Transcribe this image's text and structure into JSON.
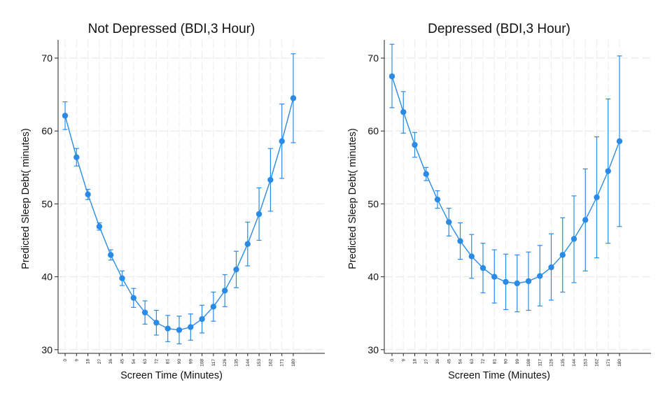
{
  "chart_data": [
    {
      "type": "line",
      "title": "Not Depressed (BDI,3 Hour)",
      "xlabel": "Screen Time (Minutes)",
      "ylabel": "Predicted Sleep Debt( minutes)",
      "x": [
        0,
        9,
        18,
        27,
        36,
        45,
        54,
        63,
        72,
        81,
        90,
        99,
        108,
        117,
        126,
        135,
        144,
        153,
        162,
        171,
        180
      ],
      "y": [
        62.1,
        56.4,
        51.3,
        46.9,
        43.0,
        39.8,
        37.1,
        35.1,
        33.7,
        32.9,
        32.7,
        33.1,
        34.2,
        35.9,
        38.1,
        41.0,
        44.5,
        48.6,
        53.3,
        58.6,
        64.5
      ],
      "ci_lower": [
        60.2,
        55.2,
        50.6,
        46.4,
        42.3,
        38.8,
        35.8,
        33.5,
        32.0,
        31.1,
        30.8,
        31.3,
        32.3,
        33.9,
        35.9,
        38.5,
        41.5,
        45.0,
        49.0,
        53.5,
        58.4
      ],
      "ci_upper": [
        64.0,
        57.6,
        52.0,
        47.4,
        43.7,
        40.8,
        38.4,
        36.7,
        35.4,
        34.7,
        34.6,
        34.9,
        36.1,
        37.9,
        40.3,
        43.5,
        47.5,
        52.2,
        57.6,
        63.7,
        70.6
      ],
      "yticks": [
        30,
        40,
        50,
        60,
        70
      ],
      "ylim": [
        29.5,
        72.5
      ],
      "grid": true,
      "color": "#2a8be6"
    },
    {
      "type": "line",
      "title": "Depressed (BDI,3 Hour)",
      "xlabel": "Screen Time (Minutes)",
      "ylabel": "Predicted Sleep Debt( minutes)",
      "x": [
        0,
        9,
        18,
        27,
        36,
        45,
        54,
        63,
        72,
        81,
        90,
        99,
        108,
        117,
        126,
        135,
        144,
        153,
        162,
        171,
        180
      ],
      "y": [
        67.5,
        62.6,
        58.1,
        54.1,
        50.6,
        47.5,
        44.9,
        42.8,
        41.2,
        40.0,
        39.3,
        39.1,
        39.4,
        40.1,
        41.3,
        43.0,
        45.2,
        47.8,
        50.9,
        54.5,
        58.6
      ],
      "ci_lower": [
        63.2,
        59.7,
        56.4,
        53.2,
        49.4,
        45.6,
        42.4,
        39.8,
        37.8,
        36.4,
        35.5,
        35.2,
        35.4,
        36.0,
        36.8,
        37.9,
        39.2,
        40.8,
        42.6,
        44.6,
        46.9
      ],
      "ci_upper": [
        71.9,
        65.4,
        59.8,
        55.0,
        51.8,
        49.4,
        47.4,
        45.8,
        44.6,
        43.7,
        43.1,
        43.0,
        43.4,
        44.3,
        45.9,
        48.1,
        51.1,
        54.8,
        59.2,
        64.4,
        70.3
      ],
      "yticks": [
        30,
        40,
        50,
        60,
        70
      ],
      "ylim": [
        29.5,
        72.5
      ],
      "grid": true,
      "color": "#2a8be6"
    }
  ]
}
